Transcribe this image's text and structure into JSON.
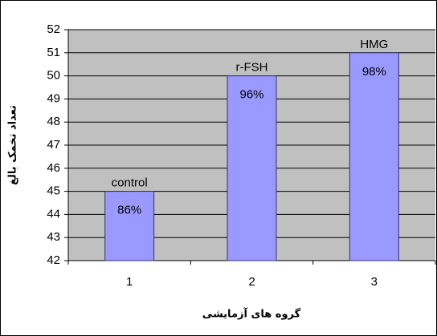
{
  "chart_data": {
    "type": "bar",
    "categories": [
      "1",
      "2",
      "3"
    ],
    "values": [
      45,
      50,
      51
    ],
    "bar_labels": [
      "control",
      "r-FSH",
      "HMG"
    ],
    "percent_labels": [
      "86%",
      "96%",
      "98%"
    ],
    "color": "#9999ff",
    "ylim": [
      42,
      52
    ],
    "yticks": [
      42,
      43,
      44,
      45,
      46,
      47,
      48,
      49,
      50,
      51,
      52
    ],
    "grid": true,
    "x_label": "گروه های آزمایشی",
    "y_label": "تعداد تخمک بالغ"
  }
}
